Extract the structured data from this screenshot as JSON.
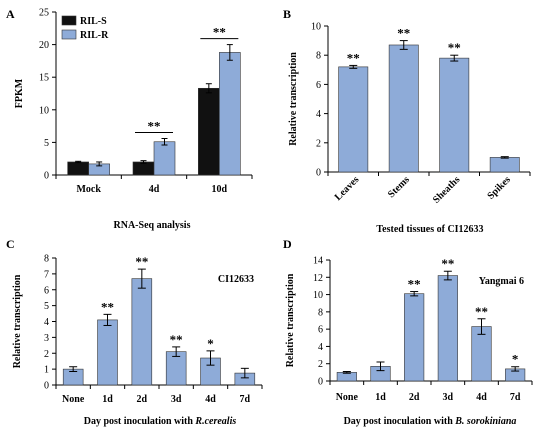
{
  "chart_data": [
    {
      "panel": "A",
      "type": "bar",
      "categories": [
        "Mock",
        "4d",
        "10d"
      ],
      "series": [
        {
          "name": "RIL-S",
          "color": "#111111",
          "values": [
            2.0,
            2.0,
            13.3
          ],
          "errors": [
            0.1,
            0.2,
            0.7
          ]
        },
        {
          "name": "RIL-R",
          "color": "#8eabd8",
          "values": [
            1.7,
            5.1,
            18.8
          ],
          "errors": [
            0.3,
            0.5,
            1.2
          ]
        }
      ],
      "ylabel": "FPKM",
      "xlabel": "RNA-Seq analysis",
      "ylim": [
        0,
        25
      ],
      "yticks": [
        0,
        5,
        10,
        15,
        20,
        25
      ],
      "legend": "top-left",
      "significance": [
        {
          "category": "4d",
          "label": "**"
        },
        {
          "category": "10d",
          "label": "**"
        }
      ]
    },
    {
      "panel": "B",
      "type": "bar",
      "categories": [
        "Leaves",
        "Stems",
        "Sheaths",
        "Spikes"
      ],
      "values": [
        7.2,
        8.7,
        7.8,
        1.0
      ],
      "errors": [
        0.1,
        0.3,
        0.2,
        0.05
      ],
      "significance": [
        "**",
        "**",
        "**",
        ""
      ],
      "color": "#8eabd8",
      "ylabel": "Relative transcription",
      "xlabel": "Tested tissues of CI12633",
      "ylim": [
        0,
        10
      ],
      "yticks": [
        0,
        2,
        4,
        6,
        8,
        10
      ]
    },
    {
      "panel": "C",
      "type": "bar",
      "categories": [
        "None",
        "1d",
        "2d",
        "3d",
        "4d",
        "7d"
      ],
      "values": [
        1.0,
        4.1,
        6.7,
        2.1,
        1.7,
        0.75
      ],
      "errors": [
        0.15,
        0.35,
        0.6,
        0.3,
        0.45,
        0.3
      ],
      "significance": [
        "",
        "**",
        "**",
        "**",
        "*",
        ""
      ],
      "color": "#8eabd8",
      "ylabel": "Relative transcription",
      "xlabel_prefix": "Day post inoculation with ",
      "xlabel_italic": "R.cerealis",
      "ylim": [
        0,
        8
      ],
      "yticks": [
        0,
        1,
        2,
        3,
        4,
        5,
        6,
        7,
        8
      ],
      "annotation": "CI12633"
    },
    {
      "panel": "D",
      "type": "bar",
      "categories": [
        "None",
        "1d",
        "2d",
        "3d",
        "4d",
        "7d"
      ],
      "values": [
        1.0,
        1.7,
        10.1,
        12.2,
        6.3,
        1.4
      ],
      "errors": [
        0.1,
        0.5,
        0.25,
        0.5,
        0.9,
        0.25
      ],
      "significance": [
        "",
        "",
        "**",
        "**",
        "**",
        "*"
      ],
      "color": "#8eabd8",
      "ylabel": "Relative transcription",
      "xlabel_prefix": "Day post inoculation with ",
      "xlabel_italic": "B. sorokiniana",
      "ylim": [
        0,
        14
      ],
      "yticks": [
        0,
        2,
        4,
        6,
        8,
        10,
        12,
        14
      ],
      "annotation": "Yangmai 6"
    }
  ]
}
